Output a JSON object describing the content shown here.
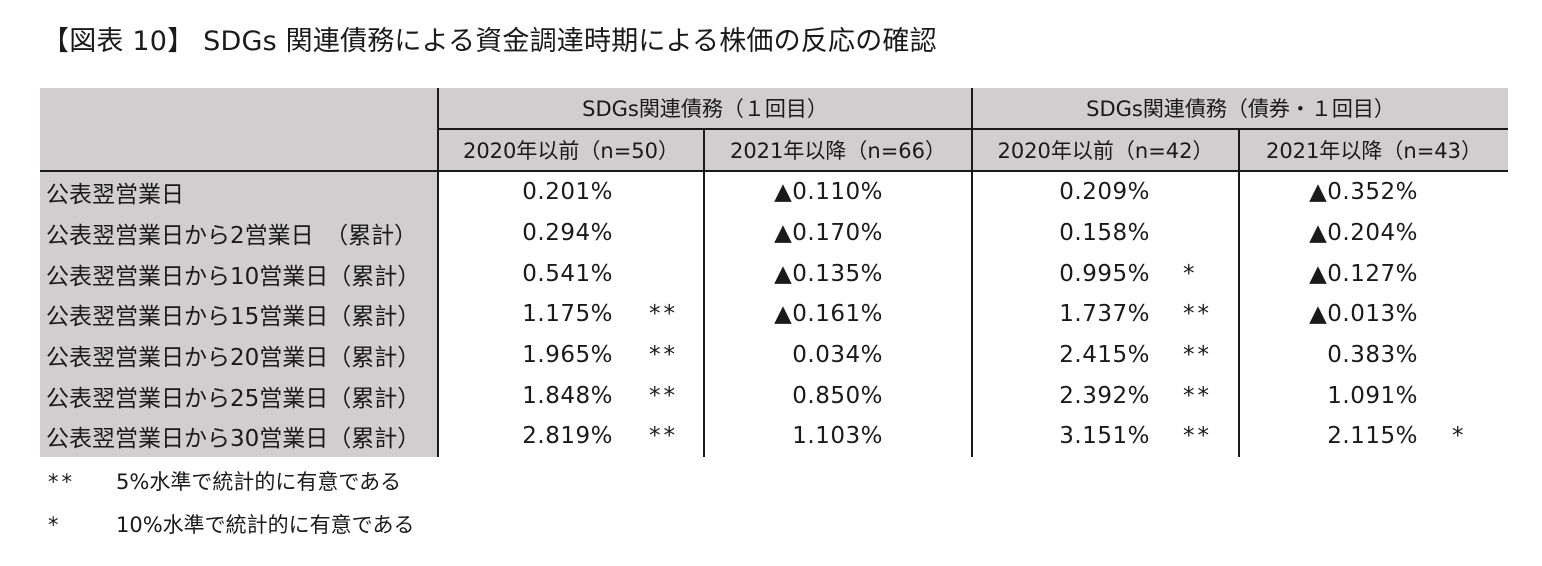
{
  "title": "【図表 10】 SDGs 関連債務による資金調達時期による株価の反応の確認",
  "groups": [
    {
      "label": "SDGs関連債務（１回目）"
    },
    {
      "label": "SDGs関連債務（債券・１回目）"
    }
  ],
  "columns": [
    {
      "label": "2020年以前（n=50）"
    },
    {
      "label": "2021年以降（n=66）"
    },
    {
      "label": "2020年以前（n=42）"
    },
    {
      "label": "2021年以降（n=43）"
    }
  ],
  "rows": [
    {
      "label": "公表翌営業日",
      "cells": [
        {
          "value": "0.201%",
          "sig": ""
        },
        {
          "value": "▲0.110%",
          "sig": ""
        },
        {
          "value": "0.209%",
          "sig": ""
        },
        {
          "value": "▲0.352%",
          "sig": ""
        }
      ]
    },
    {
      "label": "公表翌営業日から2営業日　（累計）",
      "cells": [
        {
          "value": "0.294%",
          "sig": ""
        },
        {
          "value": "▲0.170%",
          "sig": ""
        },
        {
          "value": "0.158%",
          "sig": ""
        },
        {
          "value": "▲0.204%",
          "sig": ""
        }
      ]
    },
    {
      "label": "公表翌営業日から10営業日（累計）",
      "cells": [
        {
          "value": "0.541%",
          "sig": ""
        },
        {
          "value": "▲0.135%",
          "sig": ""
        },
        {
          "value": "0.995%",
          "sig": "*"
        },
        {
          "value": "▲0.127%",
          "sig": ""
        }
      ]
    },
    {
      "label": "公表翌営業日から15営業日（累計）",
      "cells": [
        {
          "value": "1.175%",
          "sig": "**"
        },
        {
          "value": "▲0.161%",
          "sig": ""
        },
        {
          "value": "1.737%",
          "sig": "**"
        },
        {
          "value": "▲0.013%",
          "sig": ""
        }
      ]
    },
    {
      "label": "公表翌営業日から20営業日（累計）",
      "cells": [
        {
          "value": "1.965%",
          "sig": "**"
        },
        {
          "value": "0.034%",
          "sig": ""
        },
        {
          "value": "2.415%",
          "sig": "**"
        },
        {
          "value": "0.383%",
          "sig": ""
        }
      ]
    },
    {
      "label": "公表翌営業日から25営業日（累計）",
      "cells": [
        {
          "value": "1.848%",
          "sig": "**"
        },
        {
          "value": "0.850%",
          "sig": ""
        },
        {
          "value": "2.392%",
          "sig": "**"
        },
        {
          "value": "1.091%",
          "sig": ""
        }
      ]
    },
    {
      "label": "公表翌営業日から30営業日（累計）",
      "cells": [
        {
          "value": "2.819%",
          "sig": "**"
        },
        {
          "value": "1.103%",
          "sig": ""
        },
        {
          "value": "3.151%",
          "sig": "**"
        },
        {
          "value": "2.115%",
          "sig": "*"
        }
      ]
    }
  ],
  "notes": [
    {
      "mark": "**",
      "text": "5%水準で統計的に有意である"
    },
    {
      "mark": "*",
      "text": "10%水準で統計的に有意である"
    }
  ]
}
